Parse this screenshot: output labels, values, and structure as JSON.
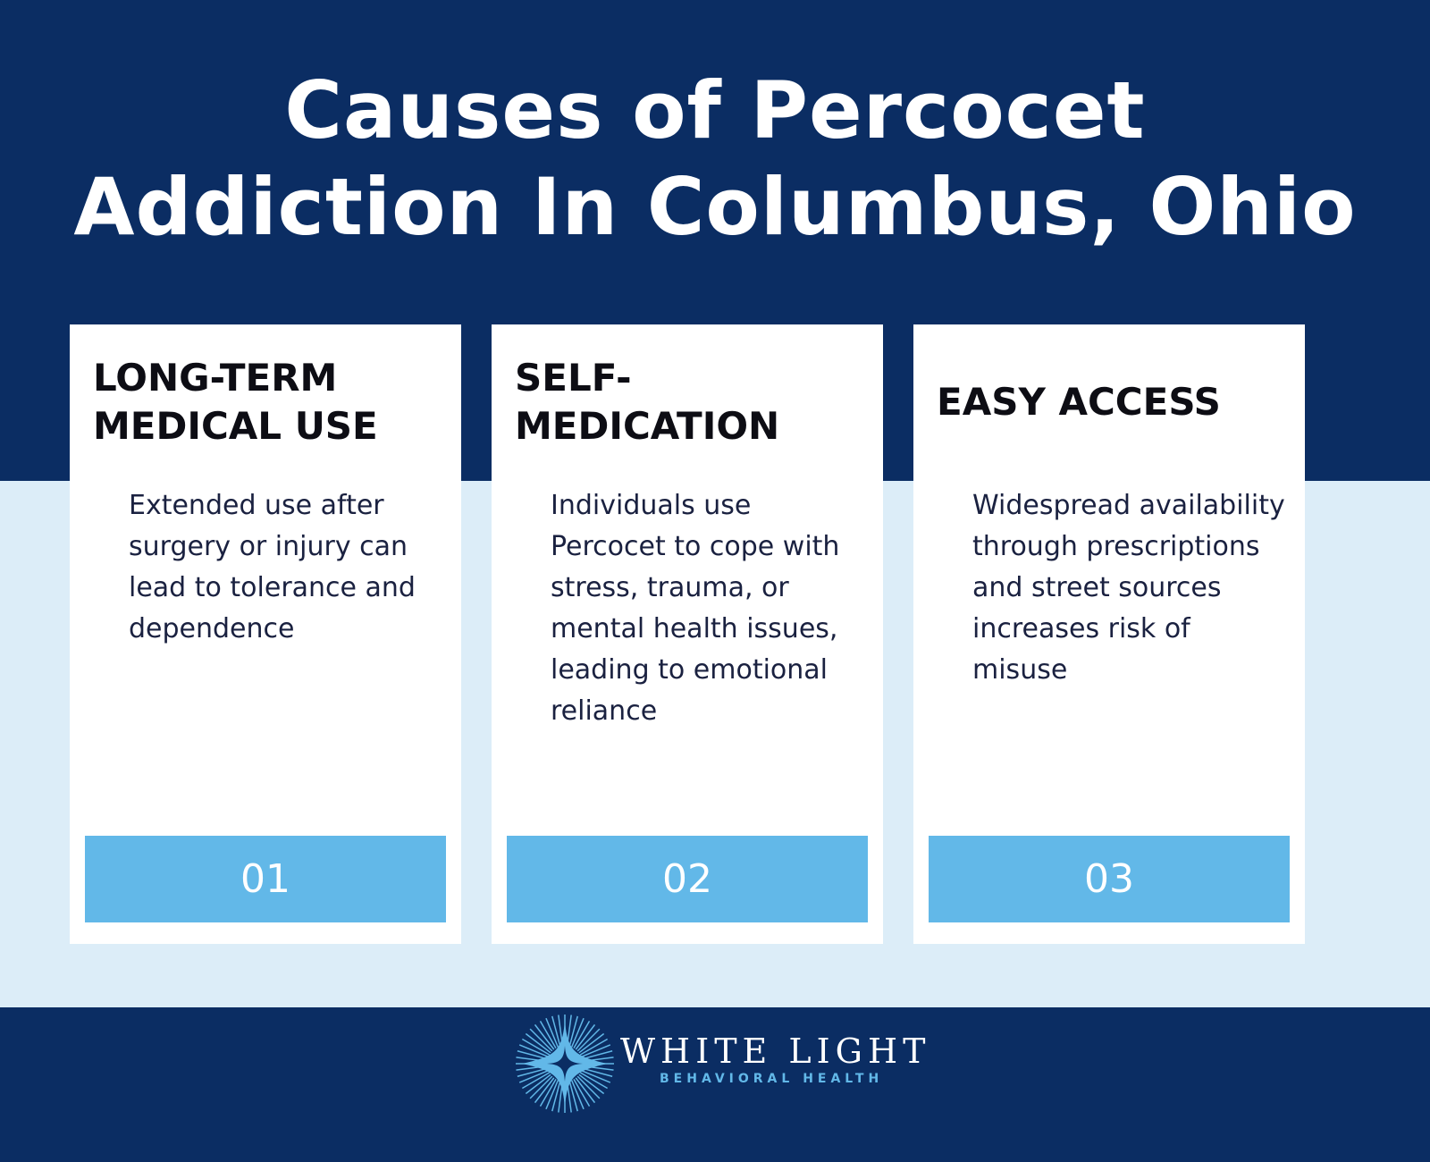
{
  "header": {
    "title_lines": [
      "Causes of Percocet",
      "Addiction In Columbus, Ohio"
    ]
  },
  "cards": [
    {
      "heading_lines": [
        "LONG-TERM",
        "MEDICAL USE"
      ],
      "text": "Extended use after surgery or injury can lead to tolerance and dependence",
      "number": "01"
    },
    {
      "heading_lines": [
        "SELF-",
        "MEDICATION"
      ],
      "text": "Individuals use Percocet to cope with stress, trauma, or mental health issues, leading to emotional reliance",
      "number": "02"
    },
    {
      "heading_lines": [
        "EASY ACCESS"
      ],
      "text": "Widespread availability through prescriptions and street sources increases risk of misuse",
      "number": "03"
    }
  ],
  "footer": {
    "brand": "WHITE LIGHT",
    "tagline": "BEHAVIORAL HEALTH"
  }
}
